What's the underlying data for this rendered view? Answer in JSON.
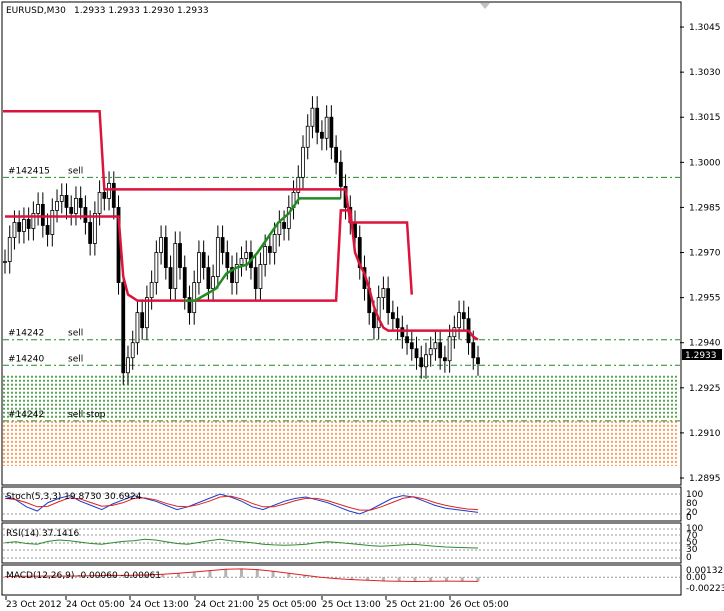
{
  "header": {
    "symbol_timeframe": "EURUSD,M30",
    "ohlc_text": "1.2933 1.2933 1.2930 1.2933"
  },
  "price_axis": {
    "ticks": [
      "1.3045",
      "1.3030",
      "1.3015",
      "1.3000",
      "1.2985",
      "1.2970",
      "1.2955",
      "1.2940",
      "1.2925",
      "1.2910",
      "1.2895"
    ],
    "current_price": "1.2933",
    "current_price_color": "#000000"
  },
  "time_axis": {
    "ticks": [
      "23 Oct 2012",
      "24 Oct 05:00",
      "24 Oct 13:00",
      "24 Oct 21:00",
      "25 Oct 05:00",
      "25 Oct 13:00",
      "25 Oct 21:00",
      "26 Oct 05:00"
    ]
  },
  "order_lines": [
    {
      "label": "#142415",
      "side": "sell",
      "price": 1.2995
    },
    {
      "label": "#14242",
      "side": "sell",
      "price": 1.2941
    },
    {
      "label": "#14240",
      "side": "sell",
      "price": 1.29325
    },
    {
      "label": "#14242",
      "side": "sell stop",
      "price": 1.2914
    }
  ],
  "indicators": {
    "stoch": {
      "label": "Stoch(5,3,3) 19.8730 30.6924",
      "levels": [
        "100",
        "80",
        "20",
        "0"
      ]
    },
    "rsi": {
      "label": "RSI(14) 37.1416",
      "levels": [
        "100",
        "70",
        "50",
        "30",
        "0"
      ]
    },
    "macd": {
      "label": "MACD(12,26,9) -0.00060 -0.00061",
      "levels": [
        "0.00132",
        "0.00",
        "-0.00223"
      ]
    }
  },
  "colors": {
    "stop_line_red": "#dc143c",
    "trail_green": "#228b22",
    "order_line": "#228b22",
    "buy_stripe": "#228b22",
    "sell_stripe": "#ff7f27",
    "stoch_main": "#1e3cc8",
    "stoch_signal": "#e02020",
    "rsi_line": "#2e8b2e",
    "macd_hist": "#b4b4b4",
    "macd_signal": "#e02020"
  },
  "chart_data": {
    "type": "candlestick",
    "symbol": "EURUSD",
    "timeframe": "M30",
    "ylim": [
      1.2893,
      1.3053
    ],
    "x": [
      "23 Oct 2012",
      "24 Oct 05:00",
      "24 Oct 13:00",
      "24 Oct 21:00",
      "25 Oct 05:00",
      "25 Oct 13:00",
      "25 Oct 21:00",
      "26 Oct 05:00"
    ],
    "closes": [
      1.2967,
      1.2975,
      1.298,
      1.2977,
      1.2981,
      1.2978,
      1.2983,
      1.2986,
      1.2979,
      1.2976,
      1.2984,
      1.2987,
      1.2989,
      1.2985,
      1.2983,
      1.2988,
      1.2985,
      1.298,
      1.2973,
      1.2983,
      1.299,
      1.2988,
      1.2993,
      1.2985,
      1.296,
      1.293,
      1.2935,
      1.294,
      1.295,
      1.2945,
      1.2955,
      1.296,
      1.297,
      1.2975,
      1.2965,
      1.2958,
      1.2973,
      1.2965,
      1.2955,
      1.295,
      1.296,
      1.297,
      1.2965,
      1.2958,
      1.2962,
      1.2975,
      1.297,
      1.2965,
      1.296,
      1.2966,
      1.2968,
      1.297,
      1.2965,
      1.2958,
      1.2966,
      1.2972,
      1.297,
      1.2976,
      1.298,
      1.2978,
      1.2985,
      1.299,
      1.2995,
      1.3005,
      1.3012,
      1.3018,
      1.301,
      1.3008,
      1.3015,
      1.3005,
      1.3,
      1.2992,
      1.2985,
      1.298,
      1.2975,
      1.2965,
      1.2958,
      1.295,
      1.2945,
      1.2955,
      1.2958,
      1.295,
      1.2948,
      1.2945,
      1.2942,
      1.294,
      1.2938,
      1.2935,
      1.2932,
      1.2936,
      1.2938,
      1.294,
      1.2935,
      1.2934,
      1.2942,
      1.2945,
      1.295,
      1.2948,
      1.294,
      1.2935,
      1.2933
    ],
    "trail_stop_red": [
      1.2982,
      1.2982,
      1.2982,
      1.2982,
      1.2982,
      1.2982,
      1.2982,
      1.2982,
      1.2982,
      1.2982,
      1.2982,
      1.2982,
      1.2982,
      1.2982,
      1.2982,
      1.2982,
      1.2982,
      1.2982,
      1.2982,
      1.2982,
      1.2982,
      1.2982,
      1.2982,
      1.2982,
      1.2982,
      1.2962,
      1.2956,
      1.2955,
      1.2954,
      1.2954,
      1.2954,
      1.2954,
      1.2954,
      1.2954,
      1.2954,
      1.2954,
      1.2954,
      1.2954,
      1.2954,
      1.2954,
      1.2954,
      1.2954,
      1.2954,
      1.2954,
      1.2954,
      1.2954,
      1.2954,
      1.2954,
      1.2954,
      1.2954,
      1.2954,
      1.2954,
      1.2954,
      1.2954,
      1.2954,
      1.2954,
      1.2954,
      1.2954,
      1.2954,
      1.2954,
      1.2954,
      1.2954,
      1.2954,
      1.2954,
      1.2954,
      1.2954,
      1.2954,
      1.2954,
      1.2954,
      1.2954,
      1.2954,
      1.2984,
      1.2984,
      1.2984,
      1.297,
      1.2966,
      1.2963,
      1.2958,
      1.2952,
      1.2948,
      1.2945,
      1.2944,
      1.2944,
      1.2944,
      1.2944,
      1.2944,
      1.2944,
      1.2944,
      1.2944,
      1.2944,
      1.2944,
      1.2944,
      1.2944,
      1.2944,
      1.2944,
      1.2944,
      1.2944,
      1.2944,
      1.2944,
      1.2942,
      1.2941
    ],
    "upper_step_red": [
      [
        0,
        1.3017
      ],
      [
        20,
        1.3017
      ],
      [
        21,
        1.2991
      ],
      [
        72,
        1.2991
      ],
      [
        73,
        1.298
      ],
      [
        85,
        1.298
      ],
      [
        86,
        1.2956
      ]
    ],
    "trail_green": [
      1.2954,
      1.2954,
      1.2956,
      1.2958,
      1.2963,
      1.2965,
      1.2966,
      1.297,
      1.2975,
      1.298,
      1.2983,
      1.2988,
      1.2988,
      1.2988,
      1.2988,
      1.2988
    ],
    "stoch_main": [
      78,
      65,
      40,
      25,
      55,
      70,
      80,
      60,
      45,
      30,
      50,
      65,
      80,
      70,
      60,
      45,
      30,
      40,
      55,
      70,
      85,
      75,
      60,
      40,
      30,
      45,
      60,
      70,
      75,
      65,
      55,
      40,
      25,
      15,
      30,
      50,
      70,
      80,
      75,
      60,
      45,
      35,
      30,
      25,
      20
    ],
    "stoch_signal": [
      70,
      66,
      55,
      40,
      42,
      58,
      72,
      68,
      55,
      42,
      45,
      55,
      70,
      72,
      65,
      52,
      42,
      40,
      48,
      60,
      75,
      78,
      68,
      52,
      40,
      40,
      50,
      62,
      70,
      70,
      62,
      50,
      38,
      28,
      28,
      40,
      55,
      70,
      76,
      68,
      55,
      45,
      38,
      32,
      30
    ],
    "rsi": [
      52,
      55,
      50,
      48,
      56,
      60,
      58,
      54,
      50,
      48,
      52,
      56,
      58,
      62,
      60,
      55,
      50,
      48,
      53,
      58,
      62,
      58,
      55,
      52,
      48,
      46,
      45,
      46,
      48,
      52,
      55,
      53,
      50,
      47,
      44,
      42,
      44,
      46,
      48,
      45,
      42,
      40,
      39,
      38,
      37
    ],
    "macd_hist": [
      0.0001,
      0.00015,
      0.00018,
      0.0002,
      0.00018,
      0.00022,
      0.00025,
      0.00028,
      0.0003,
      0.00035,
      0.00045,
      0.0006,
      0.0008,
      0.001,
      0.0012,
      0.00125,
      0.00115,
      0.0009,
      0.0006,
      0.0003,
      0.0,
      -0.0002,
      -0.00035,
      -0.00045,
      -0.00055,
      -0.0006,
      -0.00062,
      -0.0006,
      -0.00058,
      -0.0006,
      -0.00061
    ]
  }
}
